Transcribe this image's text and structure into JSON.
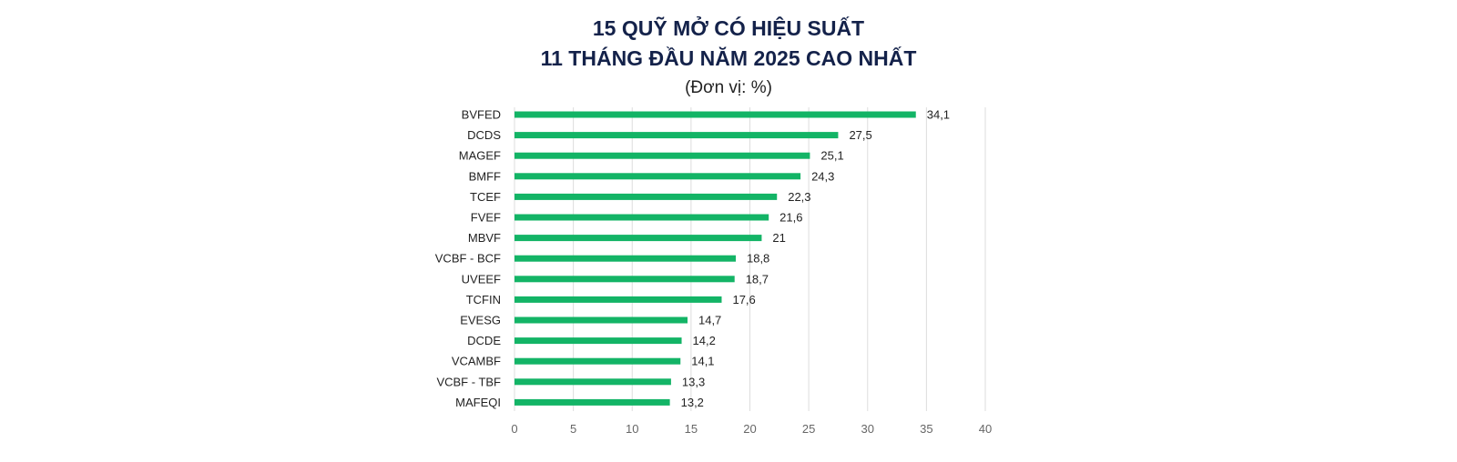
{
  "chart_data": {
    "type": "bar",
    "orientation": "horizontal",
    "title_line1": "15 QUỸ MỞ CÓ HIỆU SUẤT",
    "title_line2": "11 THÁNG ĐẦU NĂM 2025 CAO NHẤT",
    "unit_label": "(Đơn vị: %)",
    "categories": [
      "BVFED",
      "DCDS",
      "MAGEF",
      "BMFF",
      "TCEF",
      "FVEF",
      "MBVF",
      "VCBF - BCF",
      "UVEEF",
      "TCFIN",
      "EVESG",
      "DCDE",
      "VCAMBF",
      "VCBF - TBF",
      "MAFEQI"
    ],
    "values": [
      34.1,
      27.5,
      25.1,
      24.3,
      22.3,
      21.6,
      21,
      18.8,
      18.7,
      17.6,
      14.7,
      14.2,
      14.1,
      13.3,
      13.2
    ],
    "value_labels": [
      "34,1",
      "27,5",
      "25,1",
      "24,3",
      "22,3",
      "21,6",
      "21",
      "18,8",
      "18,7",
      "17,6",
      "14,7",
      "14,2",
      "14,1",
      "13,3",
      "13,2"
    ],
    "xlim": [
      0,
      40
    ],
    "xticks": [
      0,
      5,
      10,
      15,
      20,
      25,
      30,
      35,
      40
    ],
    "grid": true,
    "bar_color": "#13b466",
    "grid_color": "#dddddd"
  }
}
